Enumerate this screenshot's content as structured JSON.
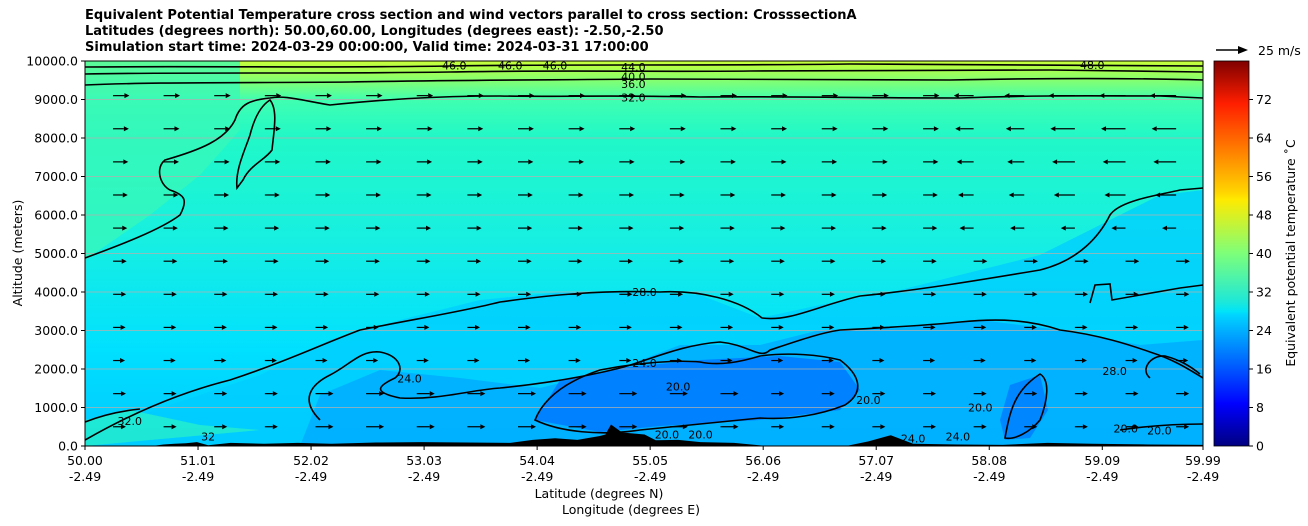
{
  "chart_data": {
    "type": "filled-contour",
    "title_lines": [
      "Equivalent Potential Temperature cross section and wind vectors parallel to cross section: CrosssectionA",
      "Latitudes (degrees north): 50.00,60.00, Longitudes (degrees east): -2.50,-2.50",
      "Simulation start time: 2024-03-29 00:00:00, Valid time: 2024-03-31 17:00:00"
    ],
    "xlabel": "Latitude (degrees N)",
    "xlabel2": "Longitude (degrees E)",
    "ylabel": "Altitude (meters)",
    "xlim": [
      50.0,
      59.99
    ],
    "ylim": [
      0,
      10000
    ],
    "grid": "horizontal",
    "x_ticks": [
      {
        "lat": "50.00",
        "lon": "-2.49",
        "value": 50.0
      },
      {
        "lat": "51.01",
        "lon": "-2.49",
        "value": 51.01
      },
      {
        "lat": "52.02",
        "lon": "-2.49",
        "value": 52.02
      },
      {
        "lat": "53.03",
        "lon": "-2.49",
        "value": 53.03
      },
      {
        "lat": "54.04",
        "lon": "-2.49",
        "value": 54.04
      },
      {
        "lat": "55.05",
        "lon": "-2.49",
        "value": 55.05
      },
      {
        "lat": "56.06",
        "lon": "-2.49",
        "value": 56.06
      },
      {
        "lat": "57.07",
        "lon": "-2.49",
        "value": 57.07
      },
      {
        "lat": "58.08",
        "lon": "-2.49",
        "value": 58.08
      },
      {
        "lat": "59.09",
        "lon": "-2.49",
        "value": 59.09
      },
      {
        "lat": "59.99",
        "lon": "-2.49",
        "value": 59.99
      }
    ],
    "y_ticks": [
      {
        "label": "0.0",
        "value": 0
      },
      {
        "label": "1000.0",
        "value": 1000
      },
      {
        "label": "2000.0",
        "value": 2000
      },
      {
        "label": "3000.0",
        "value": 3000
      },
      {
        "label": "4000.0",
        "value": 4000
      },
      {
        "label": "5000.0",
        "value": 5000
      },
      {
        "label": "6000.0",
        "value": 6000
      },
      {
        "label": "7000.0",
        "value": 7000
      },
      {
        "label": "8000.0",
        "value": 8000
      },
      {
        "label": "9000.0",
        "value": 9000
      },
      {
        "label": "10000.0",
        "value": 10000
      }
    ],
    "colorbar": {
      "label": "Equivalent potential temperature $^\\circ$C",
      "label_display": "Equivalent potential temperature ˚C",
      "min": 0,
      "max": 80,
      "ticks": [
        "0",
        "8",
        "16",
        "24",
        "32",
        "40",
        "48",
        "56",
        "64",
        "72"
      ],
      "tick_values": [
        0,
        8,
        16,
        24,
        32,
        40,
        48,
        56,
        64,
        72
      ],
      "colormap": "jet"
    },
    "quiver_key": {
      "label": "25 m/s",
      "speed": 25
    },
    "contour_labels": [
      {
        "text": "46.0",
        "x": 53.3,
        "y": 9880
      },
      {
        "text": "46.0",
        "x": 53.8,
        "y": 9880
      },
      {
        "text": "46.0",
        "x": 54.2,
        "y": 9880
      },
      {
        "text": "44.0",
        "x": 54.9,
        "y": 9850
      },
      {
        "text": "40.0",
        "x": 54.9,
        "y": 9600
      },
      {
        "text": "36.0",
        "x": 54.9,
        "y": 9400
      },
      {
        "text": "32.0",
        "x": 54.9,
        "y": 9050
      },
      {
        "text": "48.0",
        "x": 59.0,
        "y": 9900
      },
      {
        "text": "28.0",
        "x": 55.0,
        "y": 4000
      },
      {
        "text": "24.0",
        "x": 55.0,
        "y": 2150
      },
      {
        "text": "24.0",
        "x": 52.9,
        "y": 1750
      },
      {
        "text": "20.0",
        "x": 55.3,
        "y": 1550
      },
      {
        "text": "20.0",
        "x": 57.0,
        "y": 1200
      },
      {
        "text": "20.0",
        "x": 58.0,
        "y": 1000
      },
      {
        "text": "28.0",
        "x": 59.2,
        "y": 1950
      },
      {
        "text": "20.0",
        "x": 59.3,
        "y": 450
      },
      {
        "text": "20.0",
        "x": 59.6,
        "y": 400
      },
      {
        "text": "32.0",
        "x": 50.4,
        "y": 650
      },
      {
        "text": "32",
        "x": 51.1,
        "y": 250
      },
      {
        "text": "20.0",
        "x": 55.2,
        "y": 300
      },
      {
        "text": "20.0",
        "x": 55.5,
        "y": 300
      },
      {
        "text": "24.0",
        "x": 57.4,
        "y": 200
      },
      {
        "text": "24.0",
        "x": 57.8,
        "y": 250
      }
    ]
  },
  "colors": {
    "contour_line": "#000000",
    "terrain": "#000000",
    "grid": "#b0b0b0",
    "arrow": "#000000"
  }
}
